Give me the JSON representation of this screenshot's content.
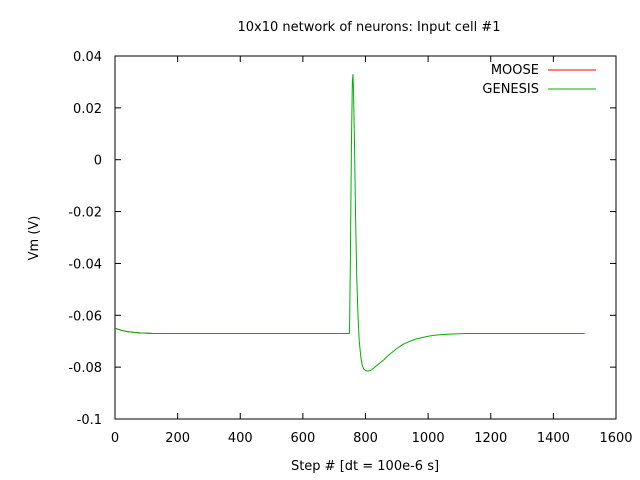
{
  "chart_data": {
    "type": "line",
    "title": "10x10 network of neurons: Input cell #1",
    "xlabel": "Step # [dt = 100e-6 s]",
    "ylabel": "Vm (V)",
    "xlim": [
      0,
      1600
    ],
    "ylim": [
      -0.1,
      0.04
    ],
    "xticks": [
      0,
      200,
      400,
      600,
      800,
      1000,
      1200,
      1400,
      1600
    ],
    "xtick_labels": [
      "0",
      "200",
      "400",
      "600",
      "800",
      "1000",
      "1200",
      "1400",
      "1600"
    ],
    "yticks": [
      0.04,
      0.02,
      0,
      -0.02,
      -0.04,
      -0.06,
      -0.08,
      -0.1
    ],
    "ytick_labels": [
      "0.04",
      "0.02",
      "0",
      "-0.02",
      "-0.04",
      "-0.06",
      "-0.08",
      "-0.1"
    ],
    "grid": false,
    "legend_position": "top-right",
    "series": [
      {
        "name": "MOOSE",
        "color": "#ff0000",
        "x": [
          0,
          20,
          40,
          60,
          80,
          100,
          120,
          200,
          400,
          600,
          748,
          749
        ],
        "y": [
          -0.065,
          -0.0658,
          -0.0663,
          -0.0666,
          -0.0668,
          -0.0669,
          -0.067,
          -0.067,
          -0.067,
          -0.067,
          -0.067,
          -0.067
        ]
      },
      {
        "name": "GENESIS",
        "color": "#00b000",
        "x": [
          0,
          20,
          40,
          60,
          80,
          100,
          120,
          200,
          400,
          600,
          748,
          749,
          752,
          755,
          758,
          760,
          762,
          765,
          768,
          772,
          776,
          780,
          785,
          790,
          795,
          800,
          805,
          810,
          815,
          820,
          825,
          830,
          840,
          850,
          860,
          870,
          880,
          900,
          920,
          940,
          960,
          980,
          1000,
          1020,
          1040,
          1060,
          1080,
          1100,
          1120,
          1150,
          1200,
          1250,
          1300,
          1400,
          1500
        ],
        "y": [
          -0.065,
          -0.0658,
          -0.0663,
          -0.0666,
          -0.0668,
          -0.0669,
          -0.067,
          -0.067,
          -0.067,
          -0.067,
          -0.067,
          -0.0665,
          -0.035,
          0.005,
          0.03,
          0.033,
          0.025,
          0.005,
          -0.02,
          -0.045,
          -0.06,
          -0.07,
          -0.076,
          -0.0795,
          -0.0808,
          -0.0813,
          -0.0815,
          -0.0815,
          -0.0813,
          -0.0809,
          -0.0805,
          -0.08,
          -0.079,
          -0.078,
          -0.077,
          -0.0758,
          -0.0748,
          -0.0728,
          -0.0712,
          -0.0701,
          -0.0692,
          -0.0686,
          -0.0681,
          -0.0677,
          -0.0675,
          -0.0673,
          -0.0672,
          -0.0671,
          -0.067,
          -0.067,
          -0.067,
          -0.067,
          -0.067,
          -0.067,
          -0.067
        ]
      }
    ]
  }
}
